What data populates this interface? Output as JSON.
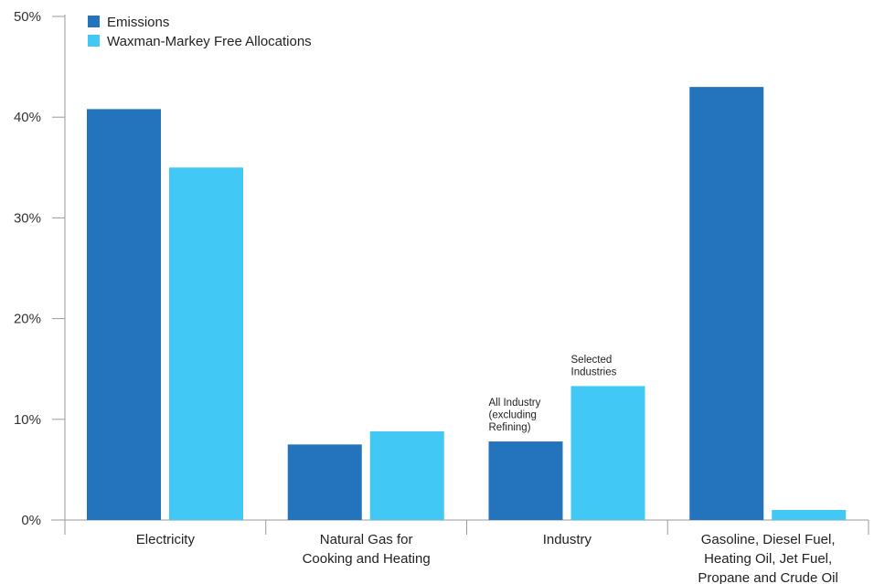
{
  "chart_data": {
    "type": "bar",
    "title": "",
    "xlabel": "",
    "ylabel": "",
    "ylim": [
      0,
      50
    ],
    "y_ticks": [
      "0%",
      "10%",
      "20%",
      "30%",
      "40%",
      "50%"
    ],
    "categories": [
      [
        "Electricity"
      ],
      [
        "Natural Gas for",
        "Cooking and Heating"
      ],
      [
        "Industry"
      ],
      [
        "Gasoline, Diesel Fuel,",
        "Heating Oil, Jet Fuel,",
        "Propane and Crude Oil"
      ]
    ],
    "series": [
      {
        "name": "Emissions",
        "color": "#2474bd",
        "values": [
          40.8,
          7.5,
          7.8,
          43.0
        ]
      },
      {
        "name": "Waxman-Markey Free Allocations",
        "color": "#41c8f4",
        "values": [
          35.0,
          8.8,
          13.3,
          1.0
        ]
      }
    ],
    "annotations": [
      {
        "category": 2,
        "series": 0,
        "lines": [
          "All Industry",
          "(excluding",
          "Refining)"
        ]
      },
      {
        "category": 2,
        "series": 1,
        "lines": [
          "Selected",
          "Industries"
        ]
      }
    ],
    "grid": false,
    "legend_position": "top-left",
    "axis_color": "#9a9a9a"
  }
}
